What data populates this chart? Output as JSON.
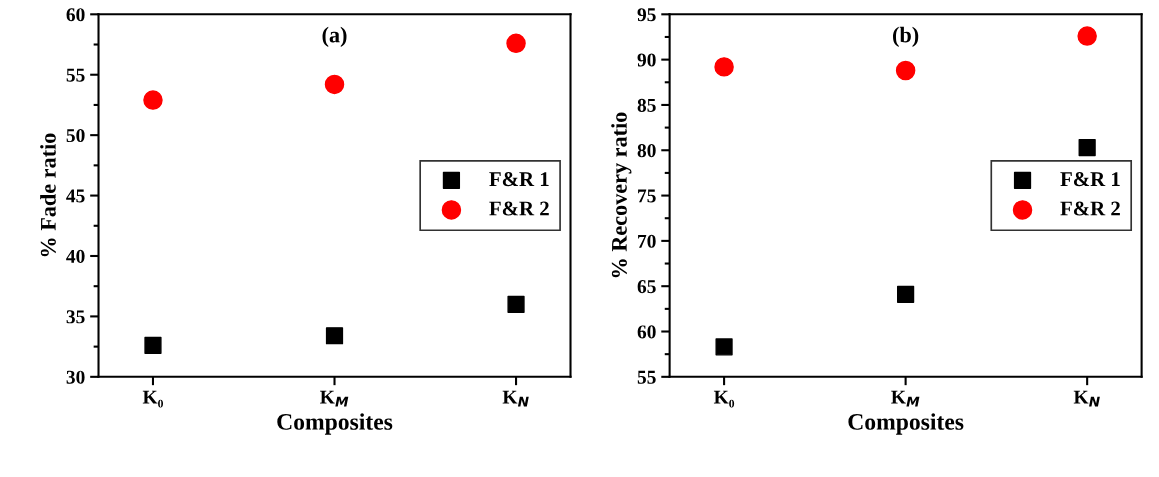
{
  "chart_data": [
    {
      "type": "scatter",
      "title": "(a)",
      "xlabel": "Composites",
      "ylabel": "% Fade ratio",
      "categories": [
        "K₀",
        "K$_{M}$",
        "K$_{N}$"
      ],
      "ylim": [
        30,
        60
      ],
      "yticks": [
        30,
        35,
        40,
        45,
        50,
        55,
        60
      ],
      "legend": "right",
      "series": [
        {
          "name": "F&R 1",
          "color": "#000000",
          "marker": "square",
          "values": [
            32.6,
            33.4,
            36.0
          ]
        },
        {
          "name": "F&R 2",
          "color": "#ff0000",
          "marker": "circle",
          "values": [
            52.9,
            54.2,
            57.6
          ]
        }
      ]
    },
    {
      "type": "scatter",
      "title": "(b)",
      "xlabel": "Composites",
      "ylabel": "% Recovery ratio",
      "categories": [
        "K₀",
        "K$_{M}$",
        "K$_{N}$"
      ],
      "ylim": [
        55,
        95
      ],
      "yticks": [
        55,
        60,
        65,
        70,
        75,
        80,
        85,
        90,
        95
      ],
      "legend": "right",
      "series": [
        {
          "name": "F&R 1",
          "color": "#000000",
          "marker": "square",
          "values": [
            58.3,
            64.1,
            80.3
          ]
        },
        {
          "name": "F&R 2",
          "color": "#ff0000",
          "marker": "circle",
          "values": [
            89.2,
            88.8,
            92.6
          ]
        }
      ]
    }
  ]
}
